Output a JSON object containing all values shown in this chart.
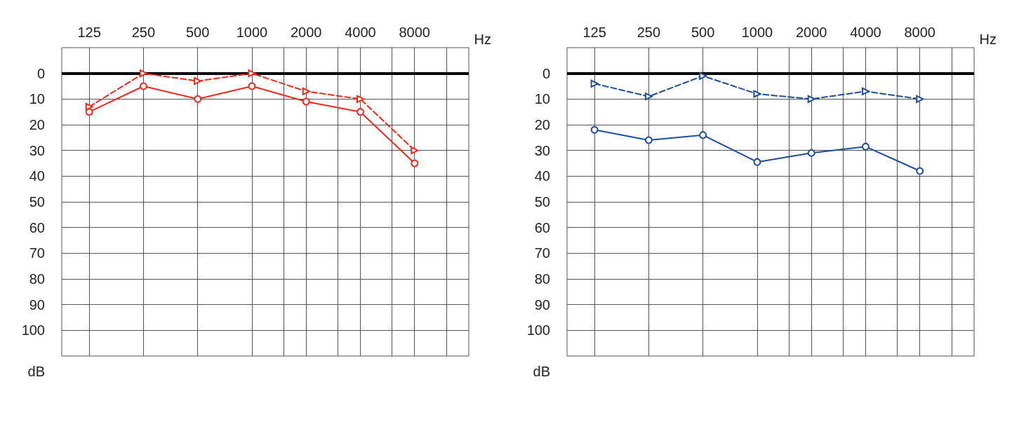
{
  "chart_data": [
    {
      "type": "line",
      "xlabel": "Hz",
      "ylabel": "dB",
      "log": "x",
      "grid": true,
      "x": [
        125,
        250,
        500,
        1000,
        2000,
        4000,
        8000
      ],
      "xlim": [
        88,
        16000
      ],
      "xticks": [
        125,
        250,
        500,
        1000,
        {
          "value": 1500,
          "label": null
        },
        2000,
        {
          "value": 3000,
          "label": null
        },
        4000,
        {
          "value": 6000,
          "label": null
        },
        8000,
        {
          "value": 12000,
          "label": null
        }
      ],
      "ylim": [
        110,
        -10
      ],
      "yticks": [
        0,
        10,
        20,
        30,
        40,
        50,
        60,
        70,
        80,
        90,
        100
      ],
      "ref_lines": [
        {
          "axis": "y",
          "value": 0,
          "color": "#000000"
        }
      ],
      "series": [
        {
          "color": "#f5281e",
          "marker": "circle",
          "line_style": "solid",
          "values": [
            15,
            5,
            10,
            5,
            11,
            15,
            35
          ]
        },
        {
          "color": "#f5281e",
          "marker": "triangle",
          "line_style": "dashed",
          "values": [
            13,
            0,
            3,
            0,
            7,
            10,
            30
          ]
        }
      ]
    },
    {
      "type": "line",
      "xlabel": "Hz",
      "ylabel": "dB",
      "log": "x",
      "grid": true,
      "x": [
        125,
        250,
        500,
        1000,
        2000,
        4000,
        8000
      ],
      "xlim": [
        88,
        16000
      ],
      "xticks": [
        125,
        250,
        500,
        1000,
        {
          "value": 1500,
          "label": null
        },
        2000,
        {
          "value": 3000,
          "label": null
        },
        4000,
        {
          "value": 6000,
          "label": null
        },
        8000,
        {
          "value": 12000,
          "label": null
        }
      ],
      "ylim": [
        110,
        -10
      ],
      "yticks": [
        0,
        10,
        20,
        30,
        40,
        50,
        60,
        70,
        80,
        90,
        100
      ],
      "ref_lines": [
        {
          "axis": "y",
          "value": 0,
          "color": "#000000"
        }
      ],
      "series": [
        {
          "color": "#1f4e9a",
          "marker": "circle",
          "line_style": "solid",
          "values": [
            22,
            26,
            24,
            34.5,
            31,
            28.5,
            38
          ]
        },
        {
          "color": "#1f4e9a",
          "marker": "triangle",
          "line_style": "dashed",
          "values": [
            4,
            9,
            1,
            8,
            10,
            7,
            10
          ]
        }
      ]
    }
  ]
}
